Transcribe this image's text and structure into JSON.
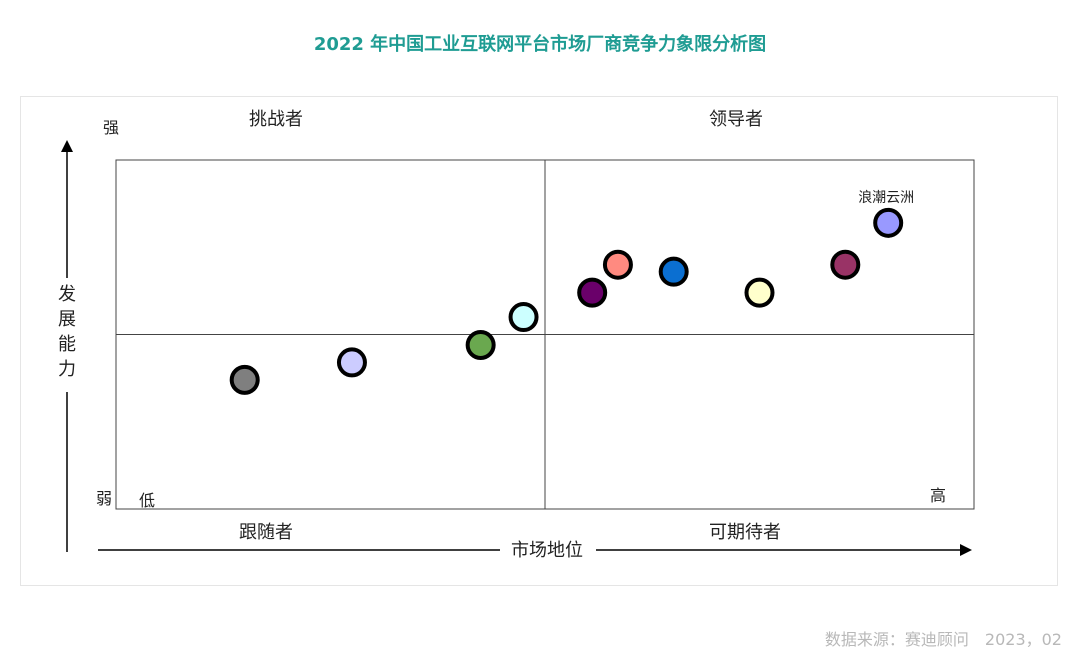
{
  "title": "2022 年中国工业互联网平台市场厂商竞争力象限分析图",
  "source": "数据来源：赛迪顾问　2023，02",
  "chart_data": {
    "type": "scatter",
    "title": "2022 年中国工业互联网平台市场厂商竞争力象限分析图",
    "xlabel": "市场地位",
    "ylabel": "发展能力",
    "x_range_labels": {
      "low": "低",
      "high": "高"
    },
    "y_range_labels": {
      "low": "弱",
      "high": "强"
    },
    "xlim": [
      0,
      100
    ],
    "ylim": [
      0,
      100
    ],
    "x_divider": 50,
    "y_divider": 50,
    "grid": false,
    "quadrants": {
      "top_left": "挑战者",
      "top_right": "领导者",
      "bottom_left": "跟随者",
      "bottom_right": "可期待者"
    },
    "points": [
      {
        "x": 15,
        "y": 37,
        "color": "#7f7f7f",
        "label": ""
      },
      {
        "x": 27.5,
        "y": 42,
        "color": "#ccccff",
        "label": ""
      },
      {
        "x": 42.5,
        "y": 47,
        "color": "#6aa84f",
        "label": ""
      },
      {
        "x": 47.5,
        "y": 55,
        "color": "#ccffff",
        "label": ""
      },
      {
        "x": 55.5,
        "y": 62,
        "color": "#6a006a",
        "label": ""
      },
      {
        "x": 58.5,
        "y": 70,
        "color": "#ff8a80",
        "label": ""
      },
      {
        "x": 65,
        "y": 68,
        "color": "#0b6fd1",
        "label": ""
      },
      {
        "x": 75,
        "y": 62,
        "color": "#ffffcc",
        "label": ""
      },
      {
        "x": 85,
        "y": 70,
        "color": "#993366",
        "label": ""
      },
      {
        "x": 90,
        "y": 82,
        "color": "#9999ff",
        "label": "浪潮云洲"
      }
    ]
  }
}
